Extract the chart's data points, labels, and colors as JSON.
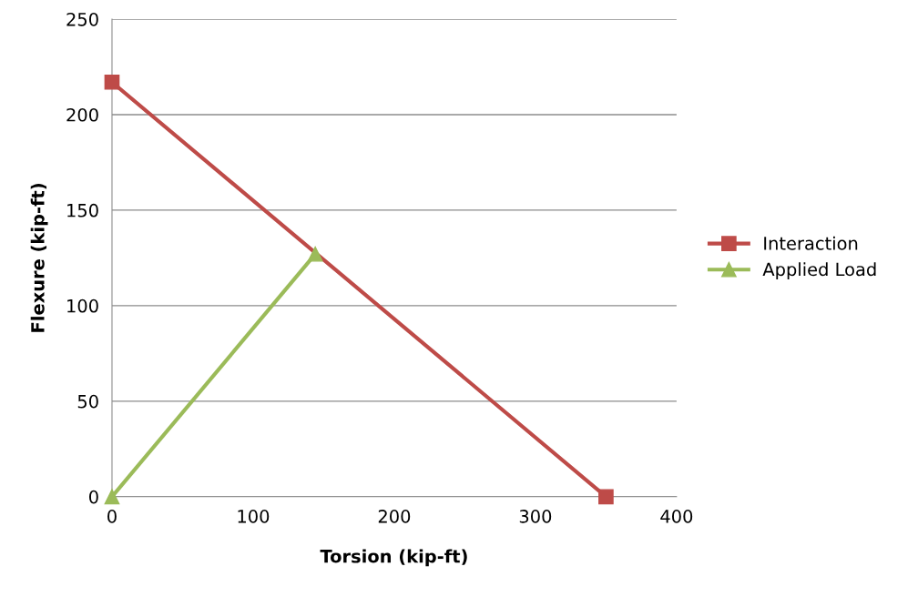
{
  "chart_data": {
    "type": "line",
    "xlabel": "Torsion (kip-ft)",
    "ylabel": "Flexure (kip-ft)",
    "series": [
      {
        "name": "Interaction",
        "color": "#be4b48",
        "x": [
          0,
          350
        ],
        "values": [
          217,
          0
        ],
        "marker": "square"
      },
      {
        "name": "Applied Load",
        "color": "#9bbb59",
        "x": [
          0,
          144
        ],
        "values": [
          0,
          127
        ],
        "marker": "triangle"
      }
    ],
    "xlim": [
      0,
      400
    ],
    "xticks": [
      0,
      100,
      200,
      300,
      400
    ],
    "ylim": [
      0,
      250
    ],
    "yticks": [
      0,
      50,
      100,
      150,
      200,
      250
    ],
    "grid": "y",
    "legend": "right",
    "line_style": "solid"
  }
}
